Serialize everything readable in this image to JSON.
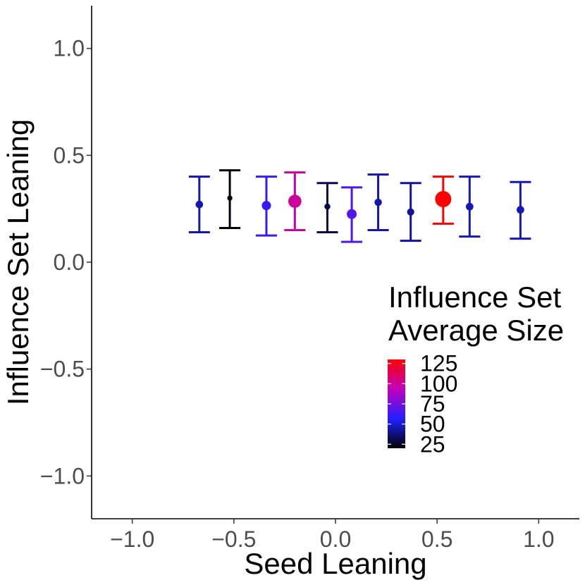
{
  "chart_data": {
    "type": "scatter",
    "xlabel": "Seed Leaning",
    "ylabel": "Influence Set Leaning",
    "xlim": [
      -1.2,
      1.2
    ],
    "ylim": [
      -1.2,
      1.2
    ],
    "x_ticks": [
      {
        "value": -1.0,
        "label": "−1.0"
      },
      {
        "value": -0.5,
        "label": "−0.5"
      },
      {
        "value": 0.0,
        "label": "0.0"
      },
      {
        "value": 0.5,
        "label": "0.5"
      },
      {
        "value": 1.0,
        "label": "1.0"
      }
    ],
    "y_ticks": [
      {
        "value": -1.0,
        "label": "−1.0"
      },
      {
        "value": -0.5,
        "label": "−0.5"
      },
      {
        "value": 0.0,
        "label": "0.0"
      },
      {
        "value": 0.5,
        "label": "0.5"
      },
      {
        "value": 1.0,
        "label": "1.0"
      }
    ],
    "grid": false,
    "points": [
      {
        "x": -0.67,
        "y": 0.27,
        "ymin": 0.14,
        "ymax": 0.4,
        "size": 45
      },
      {
        "x": -0.52,
        "y": 0.3,
        "ymin": 0.16,
        "ymax": 0.43,
        "size": 22
      },
      {
        "x": -0.34,
        "y": 0.265,
        "ymin": 0.125,
        "ymax": 0.4,
        "size": 62
      },
      {
        "x": -0.2,
        "y": 0.285,
        "ymin": 0.15,
        "ymax": 0.42,
        "size": 100
      },
      {
        "x": -0.04,
        "y": 0.26,
        "ymin": 0.14,
        "ymax": 0.37,
        "size": 30
      },
      {
        "x": 0.08,
        "y": 0.225,
        "ymin": 0.095,
        "ymax": 0.35,
        "size": 68
      },
      {
        "x": 0.21,
        "y": 0.28,
        "ymin": 0.15,
        "ymax": 0.41,
        "size": 44
      },
      {
        "x": 0.37,
        "y": 0.235,
        "ymin": 0.1,
        "ymax": 0.37,
        "size": 42
      },
      {
        "x": 0.53,
        "y": 0.295,
        "ymin": 0.18,
        "ymax": 0.4,
        "size": 130
      },
      {
        "x": 0.66,
        "y": 0.26,
        "ymin": 0.12,
        "ymax": 0.4,
        "size": 46
      },
      {
        "x": 0.91,
        "y": 0.245,
        "ymin": 0.11,
        "ymax": 0.375,
        "size": 46
      }
    ],
    "legend": {
      "title_lines": [
        "Influence Set",
        "Average Size"
      ],
      "placement": "right-inside",
      "range": [
        20,
        130
      ],
      "breaks": [
        {
          "value": 25,
          "label": "25"
        },
        {
          "value": 50,
          "label": "50"
        },
        {
          "value": 75,
          "label": "75"
        },
        {
          "value": 100,
          "label": "100"
        },
        {
          "value": 125,
          "label": "125"
        }
      ],
      "colors": [
        "#000000",
        "#2020ff",
        "#c000c0",
        "#ff0000"
      ]
    }
  }
}
